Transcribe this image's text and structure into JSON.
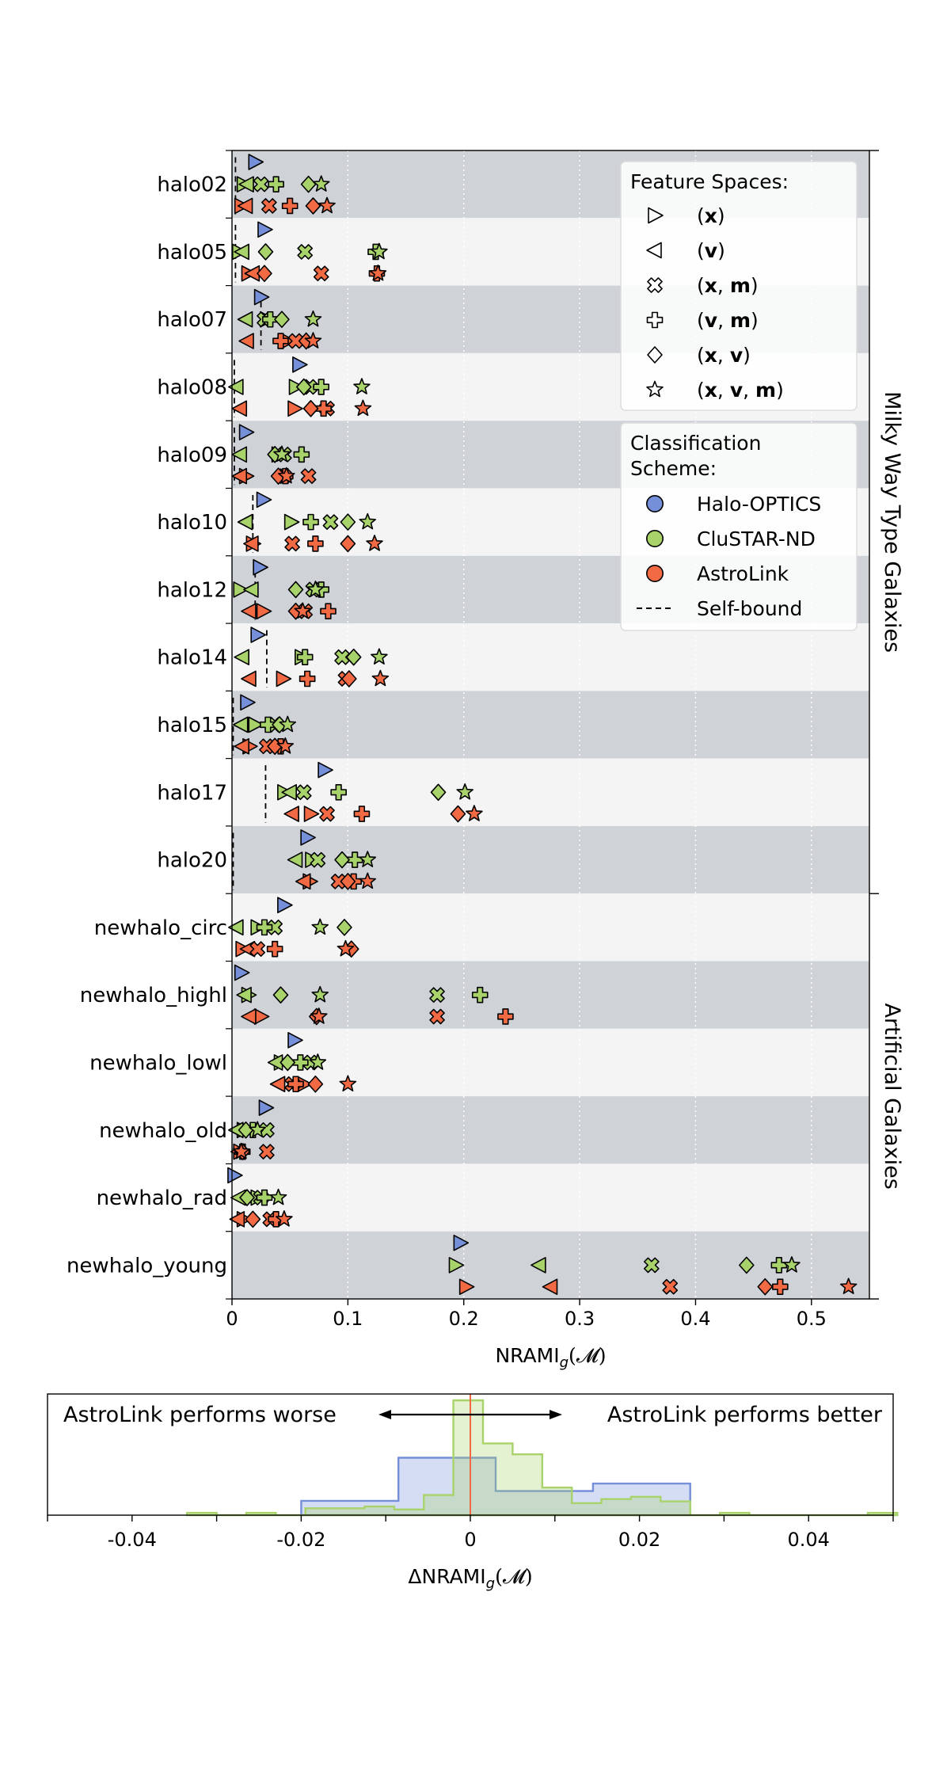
{
  "chart_data": [
    {
      "type": "scatter",
      "xlabel": "NRAMI",
      "xlabel_sub": "g",
      "xlabel_arg": "(𝓜)",
      "xlim": [
        0,
        0.55
      ],
      "xticks": [
        0,
        0.1,
        0.2,
        0.3,
        0.4,
        0.5
      ],
      "xtick_labels": [
        "0",
        "0.1",
        "0.2",
        "0.3",
        "0.4",
        "0.5"
      ],
      "grid_x": true,
      "group_labels": [
        {
          "text": "Milky Way Type Galaxies",
          "rows": [
            0,
            10
          ]
        },
        {
          "text": "Artificial Galaxies",
          "rows": [
            11,
            16
          ]
        }
      ],
      "schemes": [
        {
          "name": "Halo-OPTICS",
          "color": "#7590d9"
        },
        {
          "name": "CluSTAR-ND",
          "color": "#a8d36a"
        },
        {
          "name": "AstroLink",
          "color": "#f26a43"
        }
      ],
      "feature_spaces": [
        {
          "key": "x",
          "marker": "tri-right",
          "label_parts": [
            [
              "(",
              false
            ],
            [
              "x",
              true
            ],
            [
              ")",
              false
            ]
          ]
        },
        {
          "key": "v",
          "marker": "tri-left",
          "label_parts": [
            [
              "(",
              false
            ],
            [
              "v",
              true
            ],
            [
              ")",
              false
            ]
          ]
        },
        {
          "key": "xm",
          "marker": "x-cross",
          "label_parts": [
            [
              "(",
              false
            ],
            [
              "x",
              true
            ],
            [
              ", ",
              false
            ],
            [
              "m",
              true
            ],
            [
              ")",
              false
            ]
          ]
        },
        {
          "key": "vm",
          "marker": "plus",
          "label_parts": [
            [
              "(",
              false
            ],
            [
              "v",
              true
            ],
            [
              ", ",
              false
            ],
            [
              "m",
              true
            ],
            [
              ")",
              false
            ]
          ]
        },
        {
          "key": "xv",
          "marker": "diamond",
          "label_parts": [
            [
              "(",
              false
            ],
            [
              "x",
              true
            ],
            [
              ", ",
              false
            ],
            [
              "v",
              true
            ],
            [
              ")",
              false
            ]
          ]
        },
        {
          "key": "xvm",
          "marker": "star",
          "label_parts": [
            [
              "(",
              false
            ],
            [
              "x",
              true
            ],
            [
              ", ",
              false
            ],
            [
              "v",
              true
            ],
            [
              ", ",
              false
            ],
            [
              "m",
              true
            ],
            [
              ")",
              false
            ]
          ]
        }
      ],
      "legend": {
        "feature_title": "Feature Spaces:",
        "scheme_title": [
          "Classification",
          "Scheme:"
        ],
        "selfbound_label": "Self-bound",
        "placement": "top-right"
      },
      "rows": [
        {
          "name": "halo02",
          "selfbound": 0.003,
          "halo_optics": 0.02,
          "clustar": {
            "x": 0.01,
            "v": 0.013,
            "xm": 0.025,
            "vm": 0.038,
            "xv": 0.066,
            "xvm": 0.077
          },
          "astrolink": {
            "x": 0.008,
            "v": 0.012,
            "xm": 0.032,
            "vm": 0.05,
            "xv": 0.07,
            "xvm": 0.082
          }
        },
        {
          "name": "halo05",
          "selfbound": 0.003,
          "halo_optics": 0.028,
          "clustar": {
            "x": 0.006,
            "v": 0.009,
            "xm": 0.063,
            "vm": 0.124,
            "xv": 0.029,
            "xvm": 0.127
          },
          "astrolink": {
            "x": 0.014,
            "v": 0.018,
            "xm": 0.077,
            "vm": 0.125,
            "xv": 0.028,
            "xvm": 0.126
          }
        },
        {
          "name": "halo07",
          "selfbound": 0.025,
          "halo_optics": 0.025,
          "clustar": {
            "x": 0.03,
            "v": 0.012,
            "xm": 0.028,
            "vm": 0.033,
            "xv": 0.043,
            "xvm": 0.07
          },
          "astrolink": {
            "x": 0.048,
            "v": 0.013,
            "xm": 0.055,
            "vm": 0.042,
            "xv": 0.064,
            "xvm": 0.07
          }
        },
        {
          "name": "halo08",
          "selfbound": 0.002,
          "halo_optics": 0.058,
          "clustar": {
            "x": 0.055,
            "v": 0.004,
            "xm": 0.067,
            "vm": 0.077,
            "xv": 0.062,
            "xvm": 0.112
          },
          "astrolink": {
            "x": 0.054,
            "v": 0.007,
            "xm": 0.082,
            "vm": 0.079,
            "xv": 0.068,
            "xvm": 0.113
          }
        },
        {
          "name": "halo09",
          "selfbound": 0.002,
          "halo_optics": 0.012,
          "clustar": {
            "x": 0.04,
            "v": 0.007,
            "xm": 0.045,
            "vm": 0.06,
            "xv": 0.037,
            "xvm": 0.043
          },
          "astrolink": {
            "x": 0.012,
            "v": 0.007,
            "xm": 0.045,
            "vm": 0.046,
            "xv": 0.04,
            "xvm": 0.047,
            "extra": {
              "xm": 0.066
            }
          }
        },
        {
          "name": "halo10",
          "selfbound": 0.018,
          "halo_optics": 0.027,
          "clustar": {
            "x": 0.051,
            "v": 0.012,
            "xm": 0.085,
            "vm": 0.068,
            "xv": 0.1,
            "xvm": 0.117
          },
          "astrolink": {
            "x": 0.018,
            "v": 0.017,
            "xm": 0.052,
            "vm": 0.072,
            "xv": 0.1,
            "xvm": 0.123
          }
        },
        {
          "name": "halo12",
          "selfbound": 0.02,
          "halo_optics": 0.024,
          "clustar": {
            "x": 0.007,
            "v": 0.017,
            "xm": 0.07,
            "vm": 0.077,
            "xv": 0.055,
            "xvm": 0.072
          },
          "astrolink": {
            "x": 0.027,
            "v": 0.015,
            "xm": 0.063,
            "vm": 0.083,
            "xv": 0.055,
            "xvm": 0.061
          }
        },
        {
          "name": "halo14",
          "selfbound": 0.03,
          "halo_optics": 0.022,
          "clustar": {
            "x": 0.06,
            "v": 0.009,
            "xm": 0.095,
            "vm": 0.063,
            "xv": 0.105,
            "xvm": 0.127
          },
          "astrolink": {
            "x": 0.044,
            "v": 0.015,
            "xm": 0.098,
            "vm": 0.065,
            "xv": 0.101,
            "xvm": 0.128
          }
        },
        {
          "name": "halo15",
          "selfbound": 0.001,
          "halo_optics": 0.013,
          "clustar": {
            "x": 0.02,
            "v": 0.008,
            "xm": 0.037,
            "vm": 0.031,
            "xv": 0.041,
            "xvm": 0.048
          },
          "astrolink": {
            "x": 0.015,
            "v": 0.009,
            "xm": 0.03,
            "vm": 0.042,
            "xv": 0.037,
            "xvm": 0.046
          }
        },
        {
          "name": "halo17",
          "selfbound": 0.029,
          "halo_optics": 0.08,
          "clustar": {
            "x": 0.045,
            "v": 0.05,
            "xm": 0.062,
            "vm": 0.092,
            "xv": 0.178,
            "xvm": 0.201
          },
          "astrolink": {
            "x": 0.068,
            "v": 0.052,
            "xm": 0.082,
            "vm": 0.112,
            "xv": 0.195,
            "xvm": 0.209
          }
        },
        {
          "name": "halo20",
          "selfbound": 0.001,
          "halo_optics": 0.065,
          "clustar": {
            "x": 0.069,
            "v": 0.055,
            "xm": 0.074,
            "vm": 0.106,
            "xv": 0.095,
            "xvm": 0.117
          },
          "astrolink": {
            "x": 0.067,
            "v": 0.062,
            "xm": 0.092,
            "vm": 0.105,
            "xv": 0.1,
            "xvm": 0.117
          }
        },
        {
          "name": "newhalo_circ",
          "selfbound": null,
          "halo_optics": 0.045,
          "clustar": {
            "x": 0.022,
            "v": 0.004,
            "xm": 0.037,
            "vm": 0.028,
            "xv": 0.097,
            "xvm": 0.076
          },
          "astrolink": {
            "x": 0.009,
            "v": 0.014,
            "xm": 0.022,
            "vm": 0.037,
            "xv": 0.103,
            "xvm": 0.098
          }
        },
        {
          "name": "newhalo_highl",
          "selfbound": null,
          "halo_optics": 0.008,
          "clustar": {
            "x": 0.014,
            "v": 0.011,
            "xm": 0.177,
            "vm": 0.214,
            "xv": 0.042,
            "xvm": 0.076
          },
          "astrolink": {
            "x": 0.025,
            "v": 0.015,
            "xm": 0.177,
            "vm": 0.236,
            "xv": 0.073,
            "xvm": 0.075
          }
        },
        {
          "name": "newhalo_lowl",
          "selfbound": null,
          "halo_optics": 0.054,
          "clustar": {
            "x": 0.042,
            "v": 0.038,
            "xm": 0.068,
            "vm": 0.059,
            "xv": 0.048,
            "xvm": 0.074
          },
          "astrolink": {
            "x": 0.062,
            "v": 0.04,
            "xm": 0.052,
            "vm": 0.055,
            "xv": 0.072,
            "xvm": 0.1
          }
        },
        {
          "name": "newhalo_old",
          "selfbound": null,
          "halo_optics": 0.029,
          "clustar": {
            "x": 0.01,
            "v": 0.004,
            "xm": 0.03,
            "vm": 0.018,
            "xv": 0.012,
            "xvm": 0.022
          },
          "astrolink": {
            "x": 0.007,
            "v": 0.006,
            "xm": 0.03,
            "vm": 0.009,
            "xv": 0.009,
            "xvm": 0.008
          }
        },
        {
          "name": "newhalo_rad",
          "selfbound": null,
          "halo_optics": 0.002,
          "clustar": {
            "x": 0.022,
            "v": 0.006,
            "xm": 0.025,
            "vm": 0.028,
            "xv": 0.013,
            "xvm": 0.04
          },
          "astrolink": {
            "x": 0.01,
            "v": 0.005,
            "xm": 0.033,
            "vm": 0.038,
            "xv": 0.018,
            "xvm": 0.045
          }
        },
        {
          "name": "newhalo_young",
          "selfbound": null,
          "halo_optics": 0.197,
          "clustar": {
            "x": 0.193,
            "v": 0.265,
            "xm": 0.362,
            "vm": 0.472,
            "xv": 0.444,
            "xvm": 0.483
          },
          "astrolink": {
            "x": 0.202,
            "v": 0.275,
            "xm": 0.378,
            "vm": 0.473,
            "xv": 0.46,
            "xvm": 0.532
          }
        }
      ]
    },
    {
      "type": "histogram",
      "xlabel": "ΔNRAMI",
      "xlabel_sub": "g",
      "xlabel_arg": "(𝓜)",
      "xlim": [
        -0.05,
        0.05
      ],
      "xticks": [
        -0.04,
        -0.02,
        0,
        0.02,
        0.04
      ],
      "xtick_labels": [
        "-0.04",
        "-0.02",
        "0",
        "0.02",
        "0.04"
      ],
      "zero_line_color": "#f26a43",
      "annotations": {
        "left": "AstroLink performs worse",
        "right": "AstroLink performs better"
      },
      "series": [
        {
          "name": "Halo-OPTICS",
          "color": "#7590d9",
          "bin_edges": [
            -0.02,
            -0.0085,
            0.003,
            0.0145,
            0.026
          ],
          "counts": [
            0.25,
            1,
            0.42,
            0.55
          ]
        },
        {
          "name": "CluSTAR-ND",
          "color": "#a8d36a",
          "bin_edges": [
            -0.0335,
            -0.03,
            -0.0265,
            -0.023,
            -0.0195,
            -0.016,
            -0.0125,
            -0.009,
            -0.0055,
            -0.002,
            0.0015,
            0.005,
            0.0085,
            0.012,
            0.0155,
            0.019,
            0.0225,
            0.026,
            0.0295,
            0.033,
            0.0365,
            0.04,
            0.0435,
            0.047,
            0.0505
          ],
          "counts": [
            0.04,
            0,
            0.04,
            0,
            0.12,
            0.12,
            0.15,
            0.1,
            0.35,
            2.0,
            1.25,
            1.06,
            0.48,
            0.21,
            0.28,
            0.32,
            0.24,
            0,
            0.04,
            0,
            0,
            0,
            0,
            0.04
          ]
        }
      ]
    }
  ]
}
